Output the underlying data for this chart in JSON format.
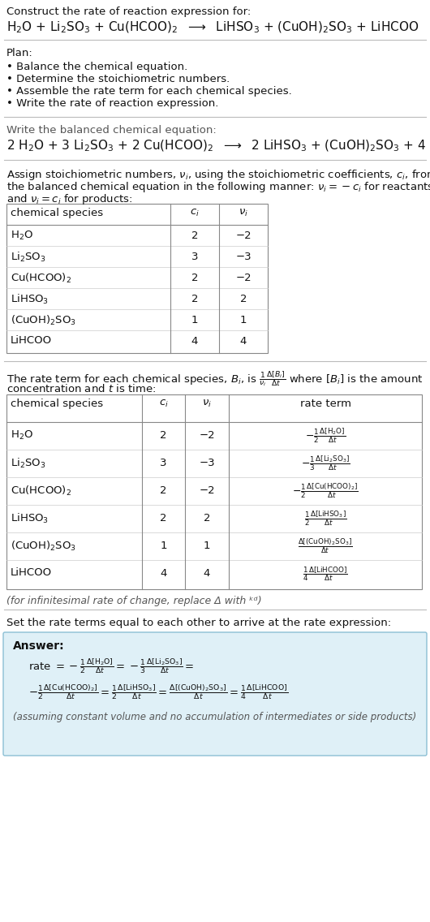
{
  "bg_color": "#ffffff",
  "title_line1": "Construct the rate of reaction expression for:",
  "plan_header": "Plan:",
  "plan_items": [
    "• Balance the chemical equation.",
    "• Determine the stoichiometric numbers.",
    "• Assemble the rate term for each chemical species.",
    "• Write the rate of reaction expression."
  ],
  "balanced_header": "Write the balanced chemical equation:",
  "stoich_intro_1": "Assign stoichiometric numbers, $\\nu_i$, using the stoichiometric coefficients, $c_i$, from",
  "stoich_intro_2": "the balanced chemical equation in the following manner: $\\nu_i = -c_i$ for reactants",
  "stoich_intro_3": "and $\\nu_i = c_i$ for products:",
  "table1_headers": [
    "chemical species",
    "$c_i$",
    "$\\nu_i$"
  ],
  "table1_rows": [
    [
      "H$_2$O",
      "2",
      "−2"
    ],
    [
      "Li$_2$SO$_3$",
      "3",
      "−3"
    ],
    [
      "Cu(HCOO)$_2$",
      "2",
      "−2"
    ],
    [
      "LiHSO$_3$",
      "2",
      "2"
    ],
    [
      "(CuOH)$_2$SO$_3$",
      "1",
      "1"
    ],
    [
      "LiHCOO",
      "4",
      "4"
    ]
  ],
  "rate_intro_1": "The rate term for each chemical species, $B_i$, is $\\frac{1}{\\nu_i}\\frac{\\Delta[B_i]}{\\Delta t}$ where $[B_i]$ is the amount",
  "rate_intro_2": "concentration and $t$ is time:",
  "table2_headers": [
    "chemical species",
    "$c_i$",
    "$\\nu_i$",
    "rate term"
  ],
  "table2_rows": [
    [
      "H$_2$O",
      "2",
      "−2"
    ],
    [
      "Li$_2$SO$_3$",
      "3",
      "−3"
    ],
    [
      "Cu(HCOO)$_2$",
      "2",
      "−2"
    ],
    [
      "LiHSO$_3$",
      "2",
      "2"
    ],
    [
      "(CuOH)$_2$SO$_3$",
      "1",
      "1"
    ],
    [
      "LiHCOO",
      "4",
      "4"
    ]
  ],
  "rate_terms": [
    "$-\\frac{1}{2}\\frac{\\Delta[\\mathrm{H_2O}]}{\\Delta t}$",
    "$-\\frac{1}{3}\\frac{\\Delta[\\mathrm{Li_2SO_3}]}{\\Delta t}$",
    "$-\\frac{1}{2}\\frac{\\Delta[\\mathrm{Cu(HCOO)_2}]}{\\Delta t}$",
    "$\\frac{1}{2}\\frac{\\Delta[\\mathrm{LiHSO_3}]}{\\Delta t}$",
    "$\\frac{\\Delta[\\mathrm{(CuOH)_2SO_3}]}{\\Delta t}$",
    "$\\frac{1}{4}\\frac{\\Delta[\\mathrm{LiHCOO}]}{\\Delta t}$"
  ],
  "infinitesimal_note": "(for infinitesimal rate of change, replace Δ with ᵏᵈ)",
  "set_rate_text": "Set the rate terms equal to each other to arrive at the rate expression:",
  "answer_bg": "#dff0f7",
  "answer_border": "#8bbfd4",
  "answer_label": "Answer:",
  "answer_assuming": "(assuming constant volume and no accumulation of intermediates or side products)"
}
